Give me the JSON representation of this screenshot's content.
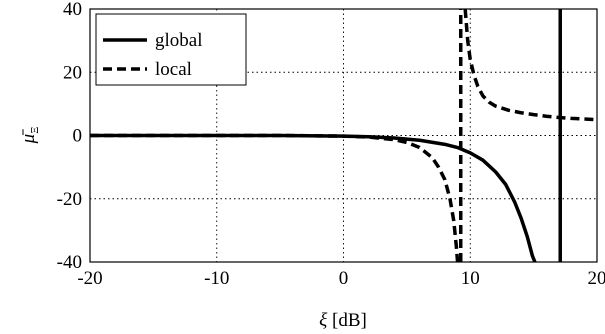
{
  "chart_data": {
    "type": "line",
    "xlabel_symbol": "ξ",
    "xlabel_unit": "[dB]",
    "ylabel_symbol": "μ̄",
    "ylabel_subscript": "Ξ",
    "xlim": [
      -20,
      20
    ],
    "ylim": [
      -40,
      40
    ],
    "xticks": [
      "-20",
      "-10",
      "0",
      "10",
      "20"
    ],
    "yticks": [
      "-40",
      "-20",
      "0",
      "20",
      "40"
    ],
    "grid": true,
    "legend_position": "top-left",
    "series": [
      {
        "name": "global",
        "line_style": "solid",
        "color": "#000000",
        "segments": [
          {
            "x": [
              -20,
              -15,
              -10,
              -5,
              -2,
              0,
              2,
              4,
              6,
              8,
              9,
              10,
              11,
              12,
              12.8,
              13.5,
              14.0,
              14.5,
              14.9,
              15.1
            ],
            "y": [
              0,
              0,
              0,
              0,
              -0.1,
              -0.2,
              -0.4,
              -0.8,
              -1.5,
              -2.8,
              -3.8,
              -5.5,
              -7.8,
              -11.5,
              -15.5,
              -21,
              -26,
              -32,
              -38,
              -40
            ]
          },
          {
            "x": [
              17.1,
              17.1
            ],
            "y": [
              -40,
              40
            ]
          }
        ]
      },
      {
        "name": "local",
        "line_style": "dashed",
        "color": "#000000",
        "segments": [
          {
            "x": [
              -20,
              -15,
              -10,
              -5,
              -2,
              0,
              2,
              4,
              5,
              6,
              7,
              7.5,
              8,
              8.4,
              8.7,
              8.9,
              9.0
            ],
            "y": [
              0,
              0,
              0,
              0,
              -0.1,
              -0.2,
              -0.5,
              -1.3,
              -2.2,
              -3.8,
              -7,
              -10,
              -14,
              -20,
              -27,
              -35,
              -40
            ]
          },
          {
            "x": [
              9.25,
              9.25
            ],
            "y": [
              -40,
              40
            ]
          },
          {
            "x": [
              9.6,
              9.8,
              10.0,
              10.3,
              10.6,
              11,
              11.5,
              12,
              13,
              14,
              15,
              16,
              17,
              18,
              19,
              20
            ],
            "y": [
              40,
              30,
              24,
              19,
              15.5,
              12.5,
              10.5,
              9.3,
              8.0,
              7.2,
              6.6,
              6.1,
              5.7,
              5.4,
              5.2,
              5.0
            ]
          }
        ]
      }
    ]
  }
}
